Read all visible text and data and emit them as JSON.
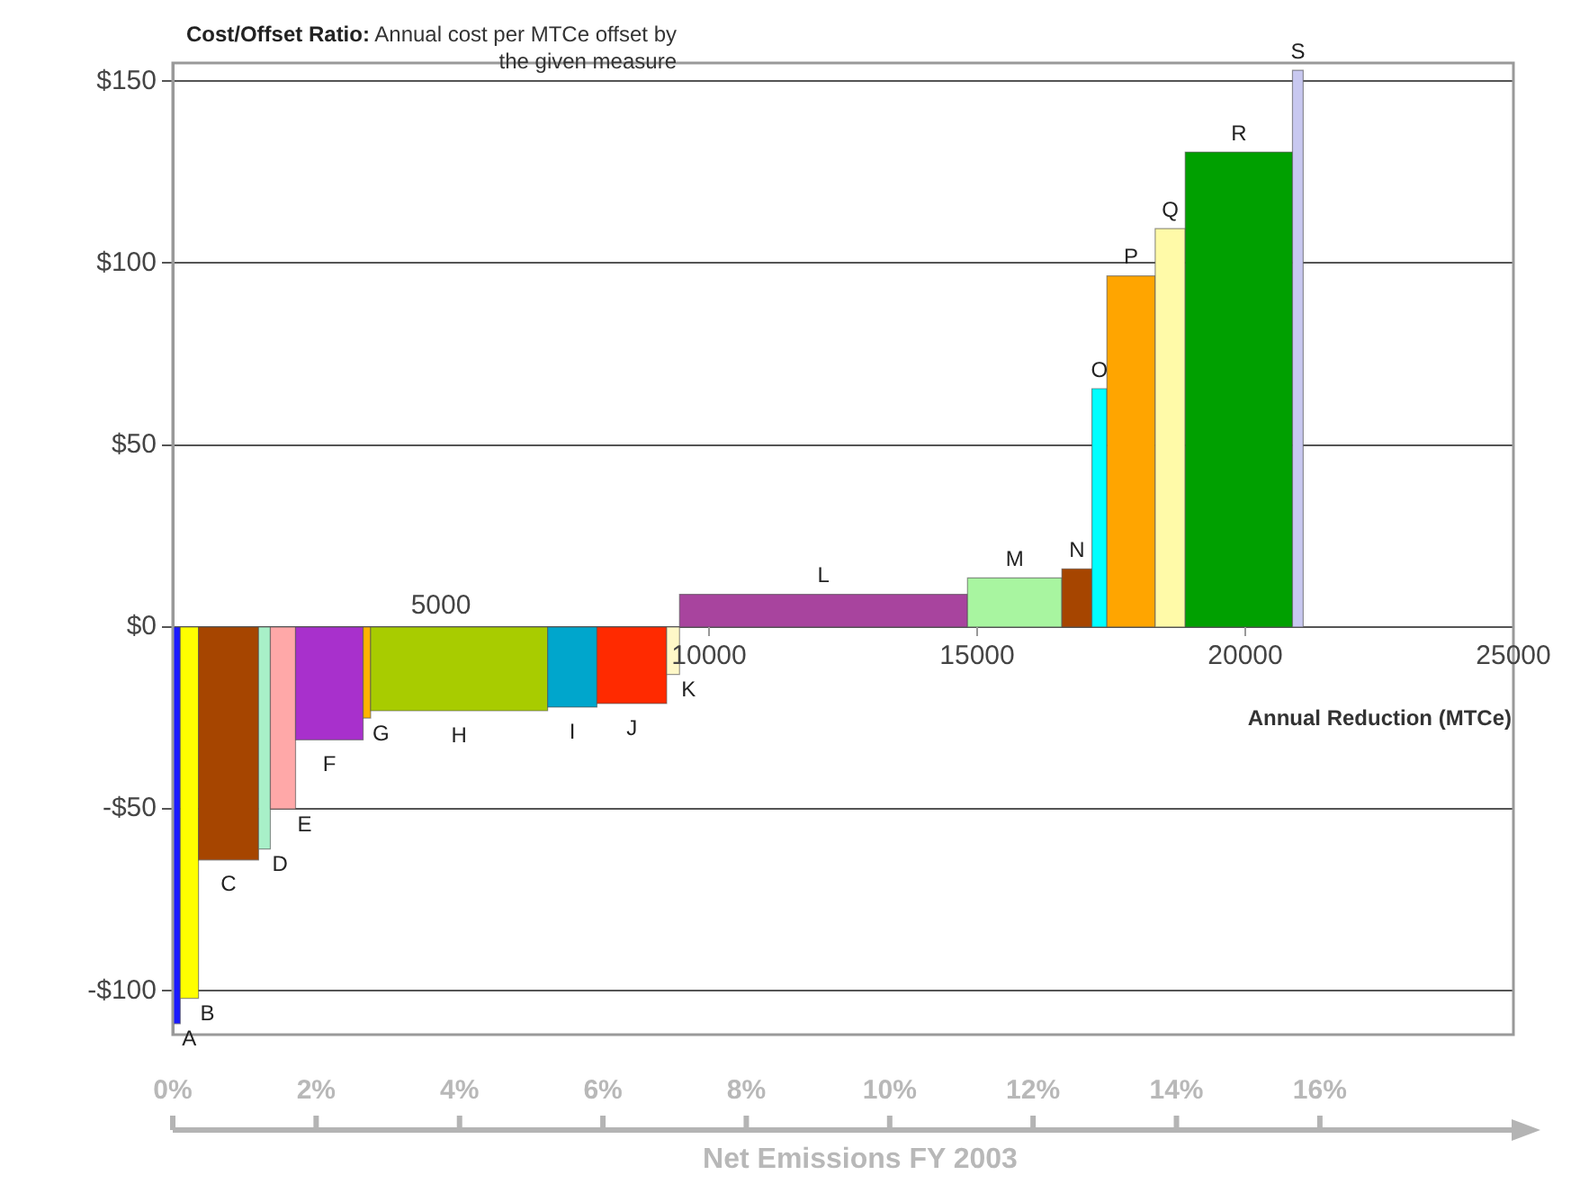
{
  "chart_data": {
    "type": "histogram",
    "title": "Cost/Offset Ratio:",
    "subtitle": "Annual cost per MTCe offset by the given measure",
    "xlabel": "Annual Reduction (MTCe)",
    "x2label": "Net Emissions FY 2003",
    "bins": [
      0,
      140,
      480,
      1600,
      1820,
      2290,
      3550,
      3690,
      6990,
      7910,
      9210,
      9450,
      14820,
      16580,
      17140,
      17420,
      18320,
      18880,
      20880,
      21080
    ],
    "values": [
      -109,
      -102,
      -64,
      -61,
      -50,
      -31,
      -25,
      -23,
      -22,
      -21,
      -13,
      9,
      13.5,
      16,
      65.5,
      96.5,
      109.5,
      130.5,
      153
    ],
    "colors": [
      "#1a1aff",
      "#ffff00",
      "#a64500",
      "#a8f0c8",
      "#ffa8a8",
      "#a830cc",
      "#ffb300",
      "#a8cc00",
      "#00a6cc",
      "#ff2a00",
      "#fff8c8",
      "#a8449e",
      "#a8f5a0",
      "#a64500",
      "#00ffff",
      "#ffa500",
      "#fffaa8",
      "#00a000",
      "#c8c8f0"
    ],
    "annotations": [
      {
        "text": "5000",
        "x": 5000,
        "y": 0
      },
      {
        "text": "A",
        "x": 70,
        "y": -109
      },
      {
        "text": "B",
        "x": 310,
        "y": -102
      },
      {
        "text": "C",
        "x": 1040,
        "y": -64
      },
      {
        "text": "D",
        "x": 1710,
        "y": -61
      },
      {
        "text": "E",
        "x": 2055,
        "y": -50
      },
      {
        "text": "F",
        "x": 2920,
        "y": -31
      },
      {
        "text": "G",
        "x": 3620,
        "y": -25
      },
      {
        "text": "H",
        "x": 5340,
        "y": -23
      },
      {
        "text": "I",
        "x": 7450,
        "y": -22
      },
      {
        "text": "J",
        "x": 8560,
        "y": -21
      },
      {
        "text": "K",
        "x": 9330,
        "y": -13
      },
      {
        "text": "L",
        "x": 12135,
        "y": 9
      },
      {
        "text": "M",
        "x": 15700,
        "y": 13.5
      },
      {
        "text": "N",
        "x": 16860,
        "y": 16
      },
      {
        "text": "O",
        "x": 17280,
        "y": 65.5
      },
      {
        "text": "P",
        "x": 17870,
        "y": 96.5
      },
      {
        "text": "Q",
        "x": 18600,
        "y": 109.5
      },
      {
        "text": "R",
        "x": 19880,
        "y": 130.5
      },
      {
        "text": "S",
        "x": 20980,
        "y": 153
      }
    ],
    "xlim": [
      0,
      25000
    ],
    "xticks": [
      10000,
      15000,
      20000,
      25000
    ],
    "ylim": [
      -112,
      155
    ],
    "yticks": [
      {
        "value": -100,
        "label": "-$100"
      },
      {
        "value": -50,
        "label": "-$50"
      },
      {
        "value": 0,
        "label": "$0"
      },
      {
        "value": 50,
        "label": "$50"
      },
      {
        "value": 100,
        "label": "$100"
      },
      {
        "value": 150,
        "label": "$150"
      }
    ],
    "x2lim": [
      0,
      18.7
    ],
    "x2ticks": [
      {
        "value": 0,
        "label": "0%"
      },
      {
        "value": 2,
        "label": "2%"
      },
      {
        "value": 4,
        "label": "4%"
      },
      {
        "value": 6,
        "label": "6%"
      },
      {
        "value": 8,
        "label": "8%"
      },
      {
        "value": 10,
        "label": "10%"
      },
      {
        "value": 12,
        "label": "12%"
      },
      {
        "value": 14,
        "label": "14%"
      },
      {
        "value": 16,
        "label": "16%"
      }
    ],
    "grid": "y"
  }
}
